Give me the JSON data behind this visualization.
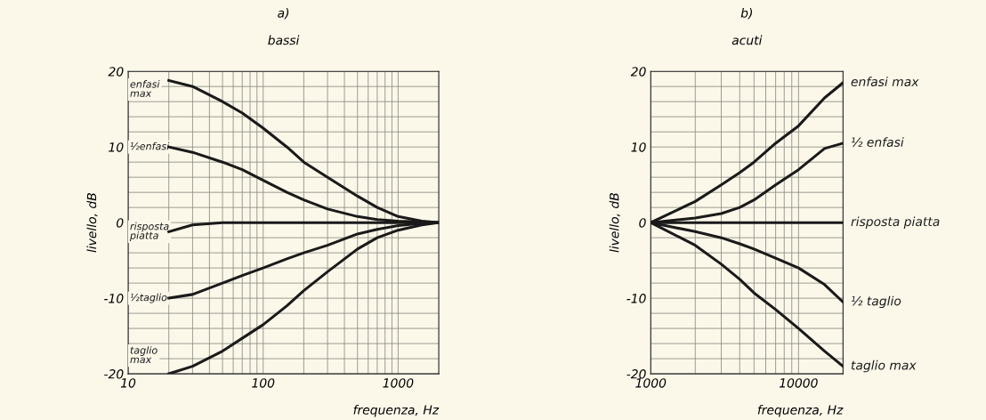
{
  "chart_data": [
    {
      "type": "line",
      "title": "a)",
      "subtitle": "bassi",
      "xlabel": "frequenza, Hz",
      "ylabel": "livello, dB",
      "log": "x",
      "grid": true,
      "legend": false,
      "xlim": [
        10,
        2000
      ],
      "ylim": [
        -20,
        20
      ],
      "xticks": [
        10,
        {
          "value": 20,
          "label": null
        },
        {
          "value": 30,
          "label": null
        },
        {
          "value": 40,
          "label": null
        },
        {
          "value": 50,
          "label": null
        },
        {
          "value": 60,
          "label": null
        },
        {
          "value": 70,
          "label": null
        },
        {
          "value": 80,
          "label": null
        },
        {
          "value": 90,
          "label": null
        },
        100,
        {
          "value": 200,
          "label": null
        },
        {
          "value": 300,
          "label": null
        },
        {
          "value": 400,
          "label": null
        },
        {
          "value": 500,
          "label": null
        },
        {
          "value": 600,
          "label": null
        },
        {
          "value": 700,
          "label": null
        },
        {
          "value": 800,
          "label": null
        },
        {
          "value": 900,
          "label": null
        },
        1000
      ],
      "yticks": [
        -20,
        {
          "value": -18,
          "label": null
        },
        {
          "value": -16,
          "label": null
        },
        {
          "value": -14,
          "label": null
        },
        {
          "value": -12,
          "label": null
        },
        -10,
        {
          "value": -8,
          "label": null
        },
        {
          "value": -6,
          "label": null
        },
        {
          "value": -4,
          "label": null
        },
        {
          "value": -2,
          "label": null
        },
        0,
        {
          "value": 2,
          "label": null
        },
        {
          "value": 4,
          "label": null
        },
        {
          "value": 6,
          "label": null
        },
        {
          "value": 8,
          "label": null
        },
        10,
        {
          "value": 12,
          "label": null
        },
        {
          "value": 14,
          "label": null
        },
        {
          "value": 16,
          "label": null
        },
        {
          "value": 18,
          "label": null
        },
        20
      ],
      "x": [
        20,
        30,
        50,
        70,
        100,
        150,
        200,
        300,
        500,
        700,
        1000,
        1500,
        2000
      ],
      "series": [
        {
          "name": "enfasi\nmax",
          "color": "#1a1a1a",
          "values": [
            18.8,
            18,
            16,
            14.5,
            12.5,
            10,
            8,
            6,
            3.5,
            2,
            0.8,
            0.2,
            0
          ]
        },
        {
          "name": "½enfasi",
          "color": "#1a1a1a",
          "values": [
            10,
            9.3,
            8,
            7,
            5.6,
            4,
            3,
            1.8,
            0.8,
            0.4,
            0.2,
            0.1,
            0
          ]
        },
        {
          "name": "risposta\npiatta",
          "color": "#1a1a1a",
          "values": [
            -1.2,
            -0.3,
            0,
            0,
            0,
            0,
            0,
            0,
            0,
            0,
            0,
            0,
            0
          ]
        },
        {
          "name": "½taglio",
          "color": "#1a1a1a",
          "values": [
            -10,
            -9.5,
            -8,
            -7,
            -6,
            -4.8,
            -4,
            -3,
            -1.5,
            -0.9,
            -0.4,
            -0.1,
            0
          ]
        },
        {
          "name": "taglio\nmax",
          "color": "#1a1a1a",
          "values": [
            -20,
            -19,
            -17,
            -15.3,
            -13.5,
            -11,
            -9,
            -6.5,
            -3.5,
            -2,
            -1,
            -0.3,
            0
          ]
        }
      ]
    },
    {
      "type": "line",
      "title": "b)",
      "subtitle": "acuti",
      "xlabel": "frequenza, Hz",
      "ylabel": "livello, dB",
      "log": "x",
      "grid": true,
      "legend": false,
      "xlim": [
        1000,
        20000
      ],
      "ylim": [
        -20,
        20
      ],
      "xticks": [
        1000,
        {
          "value": 2000,
          "label": null
        },
        {
          "value": 3000,
          "label": null
        },
        {
          "value": 4000,
          "label": null
        },
        {
          "value": 5000,
          "label": null
        },
        {
          "value": 6000,
          "label": null
        },
        {
          "value": 7000,
          "label": null
        },
        {
          "value": 8000,
          "label": null
        },
        {
          "value": 9000,
          "label": null
        },
        10000
      ],
      "yticks": [
        -20,
        {
          "value": -18,
          "label": null
        },
        {
          "value": -16,
          "label": null
        },
        {
          "value": -14,
          "label": null
        },
        {
          "value": -12,
          "label": null
        },
        -10,
        {
          "value": -8,
          "label": null
        },
        {
          "value": -6,
          "label": null
        },
        {
          "value": -4,
          "label": null
        },
        {
          "value": -2,
          "label": null
        },
        0,
        {
          "value": 2,
          "label": null
        },
        {
          "value": 4,
          "label": null
        },
        {
          "value": 6,
          "label": null
        },
        {
          "value": 8,
          "label": null
        },
        10,
        {
          "value": 12,
          "label": null
        },
        {
          "value": 14,
          "label": null
        },
        {
          "value": 16,
          "label": null
        },
        {
          "value": 18,
          "label": null
        },
        20
      ],
      "x": [
        1000,
        2000,
        3000,
        4000,
        5000,
        7000,
        10000,
        15000,
        20000
      ],
      "series": [
        {
          "name": "enfasi max",
          "color": "#1a1a1a",
          "values": [
            0,
            2.8,
            5,
            6.6,
            8,
            10.5,
            12.8,
            16.5,
            18.5
          ]
        },
        {
          "name": "½ enfasi",
          "color": "#1a1a1a",
          "values": [
            0,
            0.6,
            1.2,
            2,
            3,
            5,
            7,
            9.8,
            10.5
          ]
        },
        {
          "name": "risposta piatta",
          "color": "#1a1a1a",
          "values": [
            0,
            0,
            0,
            0,
            0,
            0,
            0,
            0,
            0
          ]
        },
        {
          "name": "½ taglio",
          "color": "#1a1a1a",
          "values": [
            0,
            -1.2,
            -2,
            -2.8,
            -3.5,
            -4.7,
            -6,
            -8.2,
            -10.5
          ]
        },
        {
          "name": "taglio max",
          "color": "#1a1a1a",
          "values": [
            0,
            -3,
            -5.5,
            -7.5,
            -9.3,
            -11.5,
            -14,
            -17,
            -19
          ]
        }
      ]
    }
  ]
}
